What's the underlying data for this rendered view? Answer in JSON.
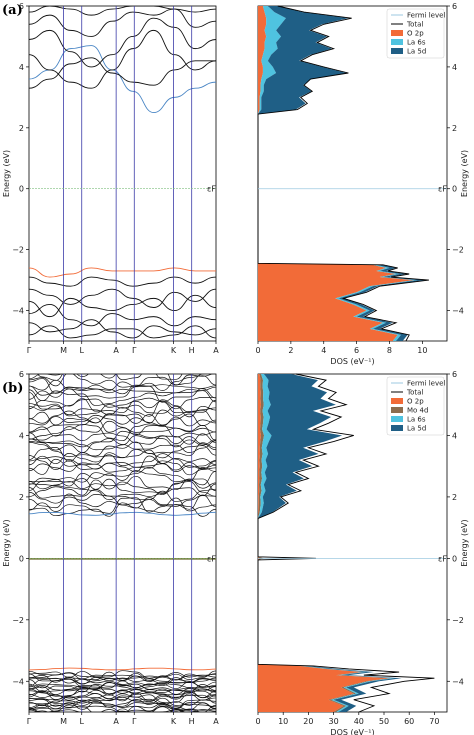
{
  "figure": {
    "panel_a_label": "(a)",
    "panel_b_label": "(b)",
    "fermi_marker": "εF"
  },
  "chart_data": [
    {
      "id": "a-bands",
      "type": "line",
      "title": "",
      "ylabel": "Energy (eV)",
      "ylim": [
        -5,
        6
      ],
      "yticks": [
        -4,
        -2,
        0,
        2,
        4,
        6
      ],
      "kpoints": [
        "Γ",
        "M",
        "L",
        "A",
        "Γ",
        "K",
        "H",
        "A"
      ],
      "kpositions": [
        0,
        0.185,
        0.282,
        0.466,
        0.563,
        0.773,
        0.87,
        1.0
      ],
      "fermi_level": 0,
      "highlight": {
        "cbm_band": "blue",
        "vbm_band": "orange"
      },
      "bands": {
        "conduction": [
          [
            3.6,
            3.9,
            4.6,
            4.7,
            3.9,
            3.2,
            2.5,
            3.0,
            3.3,
            3.5
          ],
          [
            3.3,
            3.6,
            4.1,
            4.3,
            3.8,
            3.5,
            3.4,
            3.9,
            4.2,
            4.2
          ],
          [
            4.4,
            3.9,
            3.5,
            3.3,
            3.9,
            4.6,
            5.2,
            4.4,
            3.9,
            4.2
          ],
          [
            4.9,
            5.2,
            4.5,
            4.0,
            4.4,
            5.0,
            5.6,
            5.3,
            4.6,
            4.9
          ],
          [
            5.4,
            5.7,
            5.2,
            5.0,
            5.5,
            5.8,
            5.7,
            5.9,
            5.3,
            5.5
          ],
          [
            5.8,
            6.0,
            5.9,
            5.7,
            5.9,
            6.0,
            6.0,
            5.9,
            5.8,
            5.9
          ]
        ],
        "valence": [
          [
            -2.6,
            -2.9,
            -2.8,
            -2.6,
            -2.7,
            -2.7,
            -2.7,
            -2.6,
            -2.7,
            -2.7
          ],
          [
            -2.9,
            -3.1,
            -3.2,
            -2.9,
            -3.0,
            -3.2,
            -3.1,
            -2.9,
            -3.1,
            -2.9
          ],
          [
            -3.3,
            -3.5,
            -3.8,
            -3.5,
            -3.3,
            -3.6,
            -3.9,
            -3.4,
            -3.7,
            -3.3
          ],
          [
            -3.7,
            -4.2,
            -3.6,
            -3.9,
            -4.0,
            -3.8,
            -3.6,
            -4.0,
            -3.5,
            -3.9
          ],
          [
            -4.1,
            -3.8,
            -4.3,
            -4.5,
            -4.1,
            -4.3,
            -4.2,
            -4.5,
            -4.2,
            -4.3
          ],
          [
            -4.4,
            -4.7,
            -4.6,
            -4.3,
            -4.7,
            -4.9,
            -4.5,
            -4.7,
            -4.8,
            -4.6
          ],
          [
            -4.8,
            -4.5,
            -4.9,
            -4.8,
            -4.6,
            -4.6,
            -4.9,
            -4.8,
            -4.5,
            -4.9
          ]
        ]
      }
    },
    {
      "id": "a-dos",
      "type": "area",
      "xlabel": "DOS (eV⁻¹)",
      "ylabel": "Energy (eV)",
      "xlim": [
        0,
        11.5
      ],
      "xticks": [
        0,
        2,
        4,
        6,
        8,
        10
      ],
      "ylim": [
        -5,
        6
      ],
      "yticks": [
        -4,
        -2,
        0,
        2,
        4,
        6
      ],
      "legend_position": "top-right",
      "legend": [
        "Fermi level",
        "Total",
        "O 2p",
        "La 6s",
        "La 5d"
      ],
      "colors": {
        "fermi": "#9ecae1",
        "total": "#000000",
        "o2p": "#f26b38",
        "la6s": "#4fc3e0",
        "mo4d": "#8c6d4f",
        "la5d": "#1f5f86"
      },
      "energy": [
        -5.0,
        -4.8,
        -4.6,
        -4.4,
        -4.2,
        -4.0,
        -3.8,
        -3.6,
        -3.4,
        -3.2,
        -3.0,
        -2.9,
        -2.8,
        -2.7,
        -2.6,
        -2.5,
        -2.45,
        2.45,
        2.6,
        2.8,
        3.0,
        3.2,
        3.4,
        3.6,
        3.8,
        4.0,
        4.2,
        4.4,
        4.6,
        4.8,
        5.0,
        5.2,
        5.4,
        5.6,
        5.8,
        6.0
      ],
      "total": [
        9.0,
        9.2,
        7.5,
        8.4,
        6.5,
        7.2,
        6.4,
        5.2,
        6.6,
        7.4,
        10.4,
        8.1,
        9.2,
        7.9,
        8.5,
        7.6,
        0,
        0,
        2.4,
        3.0,
        2.6,
        3.3,
        2.8,
        3.2,
        5.5,
        4.0,
        2.6,
        3.3,
        4.6,
        3.6,
        4.3,
        3.2,
        4.0,
        5.7,
        2.8,
        1.2
      ],
      "o2p": [
        8.2,
        8.5,
        6.8,
        7.6,
        5.8,
        6.6,
        5.8,
        4.7,
        6.0,
        6.8,
        9.5,
        7.4,
        8.4,
        7.2,
        7.8,
        7.0,
        0,
        0,
        0.1,
        0.1,
        0.1,
        0.15,
        0.15,
        0.2,
        0.3,
        0.3,
        0.2,
        0.3,
        0.4,
        0.4,
        0.5,
        0.4,
        0.5,
        0.5,
        0.4,
        0.3
      ],
      "la6s": [
        0.2,
        0.2,
        0.2,
        0.2,
        0.2,
        0.2,
        0.2,
        0.2,
        0.2,
        0.2,
        0.2,
        0.2,
        0.2,
        0.2,
        0.2,
        0.2,
        0,
        0,
        0.1,
        0.1,
        0.1,
        0.2,
        0.2,
        0.3,
        0.8,
        0.6,
        0.4,
        0.5,
        0.8,
        0.7,
        0.9,
        0.7,
        0.9,
        1.2,
        0.6,
        0.3
      ],
      "la5d": [
        0.4,
        0.4,
        0.4,
        0.4,
        0.4,
        0.3,
        0.3,
        0.3,
        0.3,
        0.3,
        0.5,
        0.4,
        0.4,
        0.4,
        0.4,
        0.3,
        0,
        0,
        2.1,
        2.7,
        2.3,
        2.9,
        2.4,
        2.7,
        4.3,
        3.0,
        1.9,
        2.4,
        3.3,
        2.4,
        2.8,
        2.0,
        2.5,
        3.8,
        1.7,
        0.6
      ]
    },
    {
      "id": "b-bands",
      "type": "line",
      "title": "",
      "ylabel": "Energy (eV)",
      "ylim": [
        -5,
        6
      ],
      "yticks": [
        -4,
        -2,
        0,
        2,
        4,
        6
      ],
      "kpoints": [
        "Γ",
        "M",
        "L",
        "A",
        "Γ",
        "K",
        "H",
        "A"
      ],
      "kpositions": [
        0,
        0.185,
        0.282,
        0.466,
        0.563,
        0.773,
        0.87,
        1.0
      ],
      "fermi_level": 0,
      "highlight": {
        "cbm_band": "blue",
        "vbm_band": "orange",
        "midgap_band": "olive"
      },
      "band_counts": {
        "conduction_start": 1.45,
        "conduction_end": 6.0,
        "conduction_bands": 40,
        "midgap_energy": 0.0,
        "valence_top": -3.6,
        "valence_bottom": -5.0,
        "valence_bands": 30
      }
    },
    {
      "id": "b-dos",
      "type": "area",
      "xlabel": "DOS (eV⁻¹)",
      "ylabel": "Energy (eV)",
      "xlim": [
        0,
        75
      ],
      "xticks": [
        0,
        10,
        20,
        30,
        40,
        50,
        60,
        70
      ],
      "ylim": [
        -5,
        6
      ],
      "yticks": [
        -4,
        -2,
        0,
        2,
        4,
        6
      ],
      "legend_position": "top-right",
      "legend": [
        "Fermi level",
        "Total",
        "O 2p",
        "Mo 4d",
        "La 6s",
        "La 5d"
      ],
      "energy": [
        -5.0,
        -4.8,
        -4.6,
        -4.4,
        -4.2,
        -4.0,
        -3.9,
        -3.8,
        -3.7,
        -3.6,
        -3.5,
        -3.45,
        -0.05,
        0.0,
        0.05,
        1.3,
        1.5,
        1.8,
        2.0,
        2.2,
        2.4,
        2.6,
        2.8,
        3.0,
        3.2,
        3.4,
        3.6,
        3.8,
        4.0,
        4.2,
        4.4,
        4.6,
        4.8,
        5.0,
        5.2,
        5.4,
        5.6,
        5.8,
        6.0
      ],
      "total": [
        40,
        46,
        38,
        52,
        45,
        58,
        70,
        42,
        56,
        36,
        22,
        0,
        0,
        23,
        0,
        0,
        6,
        12,
        9,
        17,
        12,
        20,
        15,
        24,
        18,
        27,
        20,
        30,
        38,
        22,
        28,
        33,
        25,
        35,
        28,
        31,
        24,
        27,
        15
      ],
      "o2p": [
        30,
        34,
        28,
        38,
        33,
        43,
        52,
        31,
        41,
        27,
        16,
        0,
        0,
        0.5,
        0,
        0,
        0.2,
        0.3,
        0.3,
        0.5,
        0.4,
        0.6,
        0.5,
        0.7,
        0.6,
        0.8,
        0.7,
        0.9,
        1.2,
        0.8,
        1.0,
        1.1,
        0.9,
        1.2,
        1.0,
        1.1,
        0.9,
        1.0,
        0.6
      ],
      "mo4d": [
        1,
        1,
        1,
        1,
        1,
        1,
        1,
        1,
        1,
        1,
        1,
        0,
        0,
        2,
        0,
        0,
        0.5,
        0.8,
        0.6,
        0.9,
        0.7,
        1.0,
        0.8,
        1.0,
        0.8,
        1.0,
        0.8,
        1.0,
        1.2,
        0.8,
        1.0,
        1.1,
        0.9,
        1.1,
        1.0,
        1.0,
        0.9,
        1.0,
        0.6
      ],
      "la6s": [
        1,
        1,
        1,
        1,
        1,
        1,
        1,
        1,
        1,
        1,
        1,
        0,
        0,
        0,
        0,
        0,
        0.8,
        1.2,
        1.0,
        1.6,
        1.2,
        1.8,
        1.4,
        2.0,
        1.6,
        2.2,
        1.8,
        2.4,
        3.0,
        1.8,
        2.2,
        2.6,
        2.0,
        2.8,
        2.2,
        2.5,
        2.0,
        2.2,
        1.2
      ],
      "la5d": [
        3,
        3,
        3,
        3,
        3,
        3,
        3,
        3,
        3,
        3,
        2,
        0,
        0,
        0,
        0,
        0,
        4.2,
        8.8,
        6.5,
        12.4,
        8.8,
        14.8,
        11.0,
        17.8,
        13.2,
        20.0,
        14.6,
        22.0,
        28.0,
        16.0,
        20.4,
        24.2,
        18.0,
        25.8,
        20.6,
        22.8,
        17.4,
        19.6,
        10.8
      ]
    }
  ]
}
